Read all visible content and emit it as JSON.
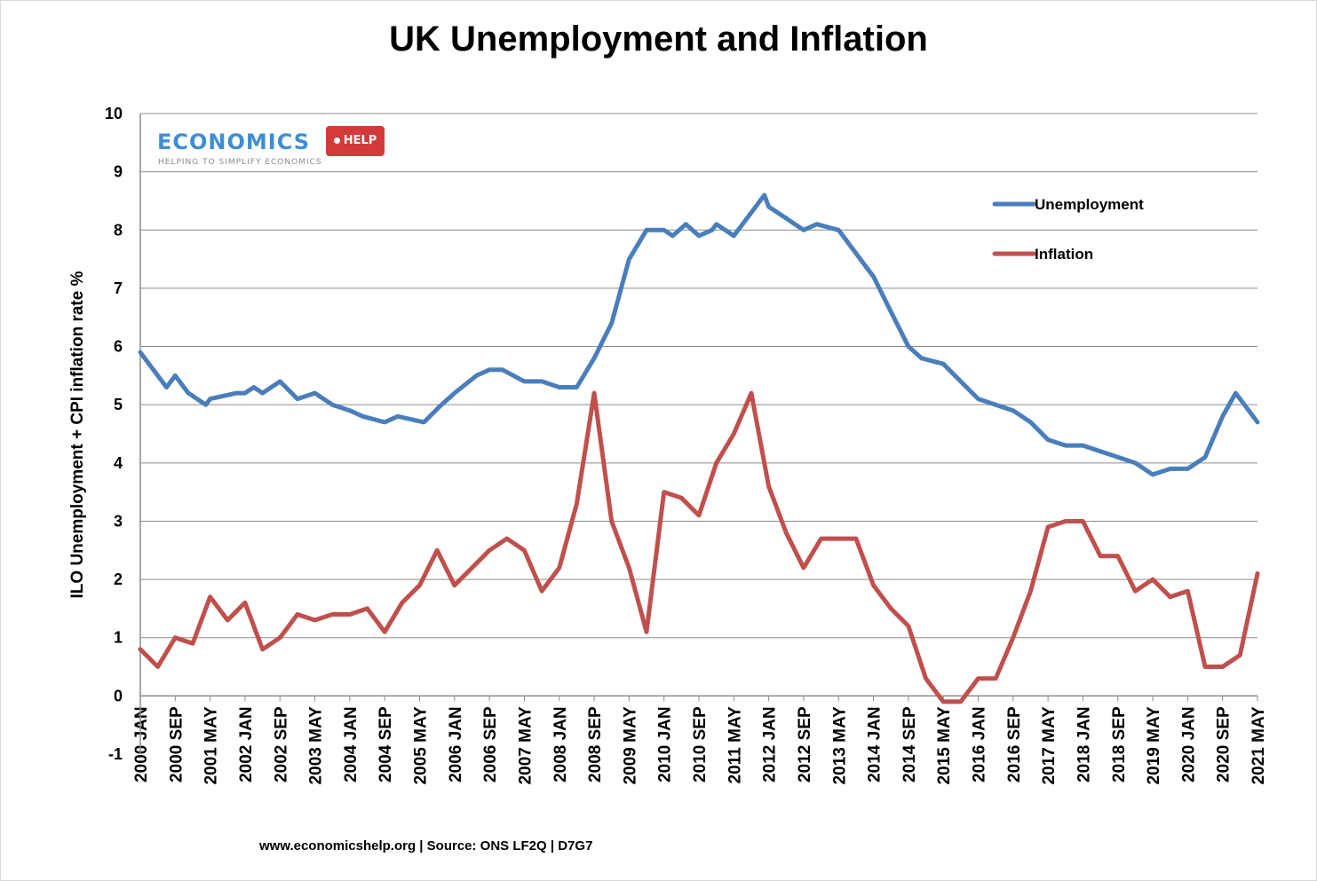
{
  "chart_data": {
    "type": "line",
    "title": "UK Unemployment and Inflation",
    "ylabel": "ILO Unemployment + CPI inflation rate %",
    "xlabel": "",
    "ylim": [
      -1,
      10
    ],
    "yticks": [
      "10",
      "9",
      "8",
      "7",
      "6",
      "5",
      "4",
      "3",
      "2",
      "1",
      "0",
      "-1"
    ],
    "xticks": [
      "2000 JAN",
      "2000 SEP",
      "2001 MAY",
      "2002 JAN",
      "2002 SEP",
      "2003 MAY",
      "2004 JAN",
      "2004 SEP",
      "2005 MAY",
      "2006 JAN",
      "2006 SEP",
      "2007 MAY",
      "2008 JAN",
      "2008 SEP",
      "2009 MAY",
      "2010 JAN",
      "2010 SEP",
      "2011 MAY",
      "2012 JAN",
      "2012 SEP",
      "2013 MAY",
      "2014 JAN",
      "2014 SEP",
      "2015 MAY",
      "2016 JAN",
      "2016 SEP",
      "2017 MAY",
      "2018 JAN",
      "2018 SEP",
      "2019 MAY",
      "2020 JAN",
      "2020 SEP",
      "2021 MAY"
    ],
    "grid": true,
    "legend_position": "top-right",
    "series": [
      {
        "name": "Unemployment",
        "color": "#4a7ebb",
        "points": [
          [
            "2000 JAN",
            5.9
          ],
          [
            "2000 APR",
            5.6
          ],
          [
            "2000 JUL",
            5.3
          ],
          [
            "2000 SEP",
            5.5
          ],
          [
            "2000 DEC",
            5.2
          ],
          [
            "2001 APR",
            5.0
          ],
          [
            "2001 MAY",
            5.1
          ],
          [
            "2001 NOV",
            5.2
          ],
          [
            "2002 JAN",
            5.2
          ],
          [
            "2002 MAR",
            5.3
          ],
          [
            "2002 MAY",
            5.2
          ],
          [
            "2002 SEP",
            5.4
          ],
          [
            "2003 JAN",
            5.1
          ],
          [
            "2003 MAY",
            5.2
          ],
          [
            "2003 SEP",
            5.0
          ],
          [
            "2004 JAN",
            4.9
          ],
          [
            "2004 APR",
            4.8
          ],
          [
            "2004 SEP",
            4.7
          ],
          [
            "2004 DEC",
            4.8
          ],
          [
            "2005 JUN",
            4.7
          ],
          [
            "2005 OCT",
            5.0
          ],
          [
            "2006 JAN",
            5.2
          ],
          [
            "2006 JUN",
            5.5
          ],
          [
            "2006 SEP",
            5.6
          ],
          [
            "2006 DEC",
            5.6
          ],
          [
            "2007 MAY",
            5.4
          ],
          [
            "2007 SEP",
            5.4
          ],
          [
            "2008 JAN",
            5.3
          ],
          [
            "2008 MAY",
            5.3
          ],
          [
            "2008 SEP",
            5.8
          ],
          [
            "2009 JAN",
            6.4
          ],
          [
            "2009 MAY",
            7.5
          ],
          [
            "2009 SEP",
            8.0
          ],
          [
            "2010 JAN",
            8.0
          ],
          [
            "2010 MAR",
            7.9
          ],
          [
            "2010 JUN",
            8.1
          ],
          [
            "2010 SEP",
            7.9
          ],
          [
            "2010 DEC",
            8.0
          ],
          [
            "2011 JAN",
            8.1
          ],
          [
            "2011 MAY",
            7.9
          ],
          [
            "2011 SEP",
            8.3
          ],
          [
            "2011 DEC",
            8.6
          ],
          [
            "2012 JAN",
            8.4
          ],
          [
            "2012 MAY",
            8.2
          ],
          [
            "2012 SEP",
            8.0
          ],
          [
            "2012 DEC",
            8.1
          ],
          [
            "2013 MAY",
            8.0
          ],
          [
            "2013 SEP",
            7.6
          ],
          [
            "2013 DEC",
            7.3
          ],
          [
            "2014 JAN",
            7.2
          ],
          [
            "2014 MAY",
            6.6
          ],
          [
            "2014 SEP",
            6.0
          ],
          [
            "2014 DEC",
            5.8
          ],
          [
            "2015 MAY",
            5.7
          ],
          [
            "2015 SEP",
            5.4
          ],
          [
            "2016 JAN",
            5.1
          ],
          [
            "2016 MAY",
            5.0
          ],
          [
            "2016 SEP",
            4.9
          ],
          [
            "2017 JAN",
            4.7
          ],
          [
            "2017 MAY",
            4.4
          ],
          [
            "2017 SEP",
            4.3
          ],
          [
            "2018 JAN",
            4.3
          ],
          [
            "2018 MAY",
            4.2
          ],
          [
            "2018 SEP",
            4.1
          ],
          [
            "2019 JAN",
            4.0
          ],
          [
            "2019 MAY",
            3.8
          ],
          [
            "2019 SEP",
            3.9
          ],
          [
            "2020 JAN",
            3.9
          ],
          [
            "2020 MAY",
            4.1
          ],
          [
            "2020 SEP",
            4.8
          ],
          [
            "2020 DEC",
            5.2
          ],
          [
            "2021 MAR",
            4.9
          ],
          [
            "2021 MAY",
            4.7
          ]
        ]
      },
      {
        "name": "Inflation",
        "color": "#c0504d",
        "points": [
          [
            "2000 JAN",
            0.8
          ],
          [
            "2000 MAY",
            0.5
          ],
          [
            "2000 SEP",
            1.0
          ],
          [
            "2001 JAN",
            0.9
          ],
          [
            "2001 MAY",
            1.7
          ],
          [
            "2001 SEP",
            1.3
          ],
          [
            "2002 JAN",
            1.6
          ],
          [
            "2002 MAY",
            0.8
          ],
          [
            "2002 SEP",
            1.0
          ],
          [
            "2003 JAN",
            1.4
          ],
          [
            "2003 MAY",
            1.3
          ],
          [
            "2003 SEP",
            1.4
          ],
          [
            "2004 JAN",
            1.4
          ],
          [
            "2004 MAY",
            1.5
          ],
          [
            "2004 SEP",
            1.1
          ],
          [
            "2005 JAN",
            1.6
          ],
          [
            "2005 MAY",
            1.9
          ],
          [
            "2005 SEP",
            2.5
          ],
          [
            "2006 JAN",
            1.9
          ],
          [
            "2006 MAY",
            2.2
          ],
          [
            "2006 SEP",
            2.5
          ],
          [
            "2007 JAN",
            2.7
          ],
          [
            "2007 MAY",
            2.5
          ],
          [
            "2007 SEP",
            1.8
          ],
          [
            "2008 JAN",
            2.2
          ],
          [
            "2008 MAY",
            3.3
          ],
          [
            "2008 SEP",
            5.2
          ],
          [
            "2009 JAN",
            3.0
          ],
          [
            "2009 MAY",
            2.2
          ],
          [
            "2009 SEP",
            1.1
          ],
          [
            "2010 JAN",
            3.5
          ],
          [
            "2010 MAY",
            3.4
          ],
          [
            "2010 SEP",
            3.1
          ],
          [
            "2011 JAN",
            4.0
          ],
          [
            "2011 MAY",
            4.5
          ],
          [
            "2011 SEP",
            5.2
          ],
          [
            "2012 JAN",
            3.6
          ],
          [
            "2012 MAY",
            2.8
          ],
          [
            "2012 SEP",
            2.2
          ],
          [
            "2013 JAN",
            2.7
          ],
          [
            "2013 MAY",
            2.7
          ],
          [
            "2013 SEP",
            2.7
          ],
          [
            "2014 JAN",
            1.9
          ],
          [
            "2014 MAY",
            1.5
          ],
          [
            "2014 SEP",
            1.2
          ],
          [
            "2015 JAN",
            0.3
          ],
          [
            "2015 MAY",
            -0.1
          ],
          [
            "2015 SEP",
            -0.1
          ],
          [
            "2016 JAN",
            0.3
          ],
          [
            "2016 MAY",
            0.3
          ],
          [
            "2016 SEP",
            1.0
          ],
          [
            "2017 JAN",
            1.8
          ],
          [
            "2017 MAY",
            2.9
          ],
          [
            "2017 SEP",
            3.0
          ],
          [
            "2018 JAN",
            3.0
          ],
          [
            "2018 MAY",
            2.4
          ],
          [
            "2018 SEP",
            2.4
          ],
          [
            "2019 JAN",
            1.8
          ],
          [
            "2019 MAY",
            2.0
          ],
          [
            "2019 SEP",
            1.7
          ],
          [
            "2020 JAN",
            1.8
          ],
          [
            "2020 MAY",
            0.5
          ],
          [
            "2020 SEP",
            0.5
          ],
          [
            "2021 JAN",
            0.7
          ],
          [
            "2021 MAY",
            2.1
          ]
        ]
      }
    ]
  },
  "logo": {
    "main": "ECONOMICS",
    "tag": "HELP",
    "sub": "HELPING TO SIMPLIFY ECONOMICS"
  },
  "source": "www.economicshelp.org | Source: ONS LF2Q | D7G7"
}
